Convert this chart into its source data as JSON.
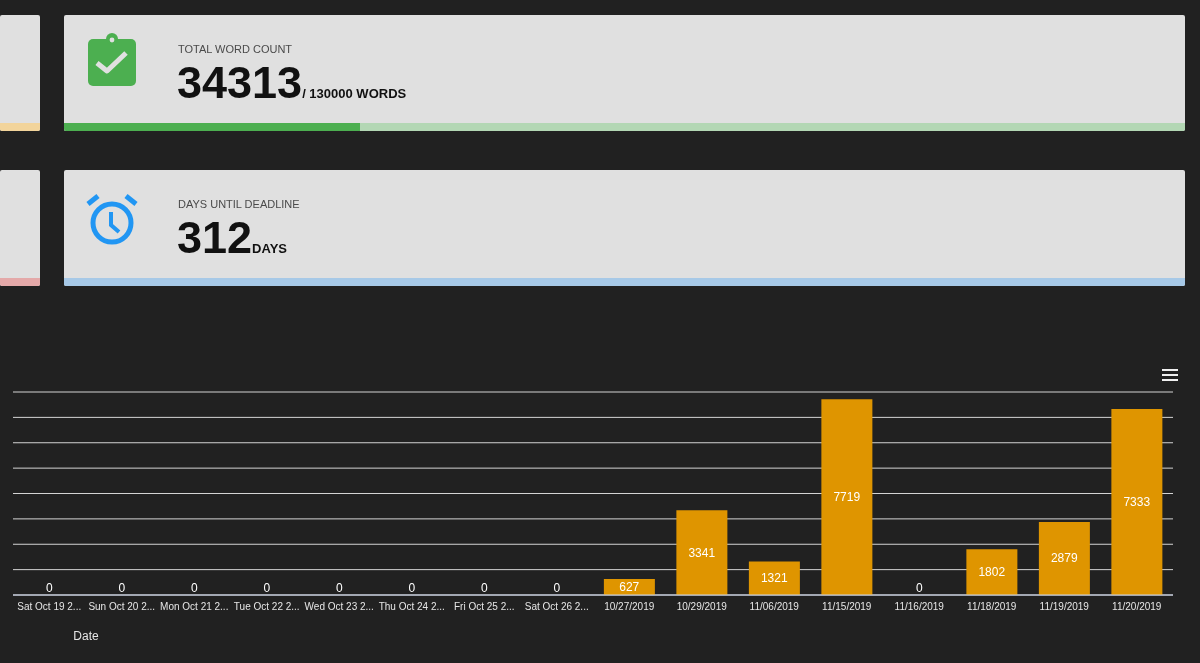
{
  "chart_data": [
    {
      "type": "other",
      "title": "TOTAL WORD COUNT",
      "values": [
        34313,
        130000
      ],
      "value_labels": [
        "34313",
        "/ 130000 WORDS"
      ]
    },
    {
      "type": "other",
      "title": "DAYS UNTIL DEADLINE",
      "values": [
        312
      ],
      "data_labels": true,
      "annotations": [
        "DAYS"
      ]
    },
    {
      "type": "bar",
      "xlabel": "Date",
      "categories": [
        "Sat Oct 19 2...",
        "Sun Oct 20 2...",
        "Mon Oct 21 2...",
        "Tue Oct 22 2...",
        "Wed Oct 23 2...",
        "Thu Oct 24 2...",
        "Fri Oct 25 2...",
        "Sat Oct 26 2...",
        "10/27/2019",
        "10/29/2019",
        "11/06/2019",
        "11/15/2019",
        "11/16/2019",
        "11/18/2019",
        "11/19/2019",
        "11/20/2019"
      ],
      "values": [
        0,
        0,
        0,
        0,
        0,
        0,
        0,
        0,
        627,
        3341,
        1321,
        7719,
        0,
        1802,
        2879,
        7333
      ],
      "color": "#df9500",
      "ylim": [
        0,
        8000
      ],
      "yticks": [
        {
          "value": 0,
          "label": null
        },
        {
          "value": 1000,
          "label": null
        },
        {
          "value": 2000,
          "label": null
        },
        {
          "value": 3000,
          "label": null
        },
        {
          "value": 4000,
          "label": null
        },
        {
          "value": 5000,
          "label": null
        },
        {
          "value": 6000,
          "label": null
        },
        {
          "value": 7000,
          "label": null
        },
        {
          "value": 8000,
          "label": null
        }
      ],
      "grid": "y",
      "tick_labels": "x",
      "data_labels": true
    }
  ]
}
